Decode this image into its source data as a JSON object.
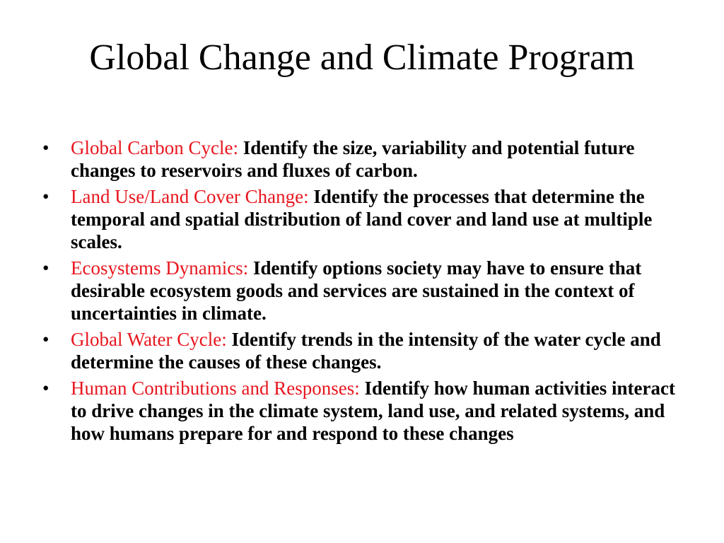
{
  "slide": {
    "title": "Global Change and Climate Program",
    "bullet_symbol": "•",
    "items": [
      {
        "term": "Global Carbon Cycle:",
        "text": "Identify the size, variability and potential future changes to reservoirs and fluxes of carbon."
      },
      {
        "term": "Land Use/Land Cover Change:",
        "text": "Identify the processes that determine the temporal and spatial distribution of land cover and land use at multiple scales."
      },
      {
        "term": "Ecosystems Dynamics:",
        "text": "Identify options society may have to ensure that desirable ecosystem goods and services are sustained in the context of uncertainties in climate."
      },
      {
        "term": "Global Water Cycle:",
        "text": "Identify trends in the intensity of the water cycle and determine the causes of these changes."
      },
      {
        "term": "Human Contributions and Responses:",
        "text": "Identify how human activities interact to drive changes in the climate system, land use, and related systems, and how humans prepare for and respond to these changes"
      }
    ]
  },
  "colors": {
    "term": "#e8161e",
    "text": "#000000",
    "background": "#ffffff"
  }
}
